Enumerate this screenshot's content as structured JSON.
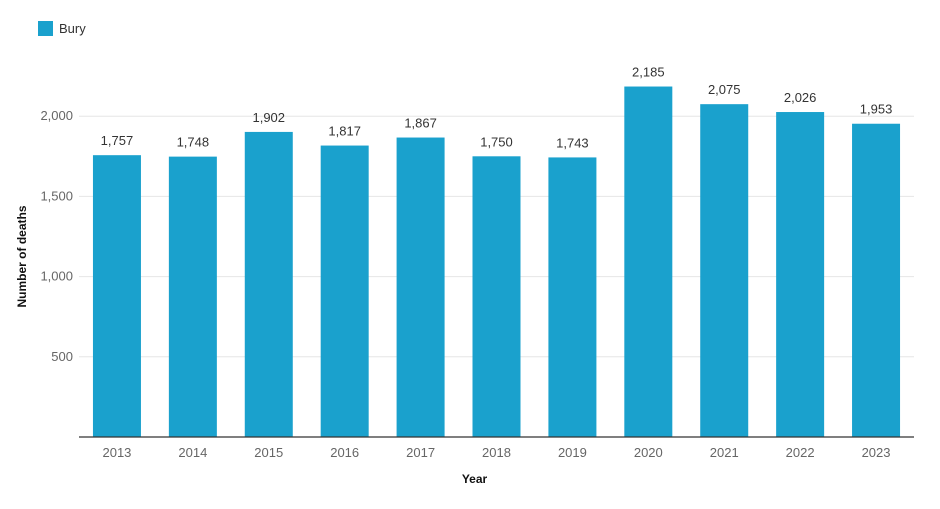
{
  "legend": {
    "label": "Bury"
  },
  "colors": {
    "bar": "#1aa1cd",
    "grid": "#e6e6e6",
    "axis": "#333333"
  },
  "chart_data": {
    "type": "bar",
    "categories": [
      "2013",
      "2014",
      "2015",
      "2016",
      "2017",
      "2018",
      "2019",
      "2020",
      "2021",
      "2022",
      "2023"
    ],
    "series": [
      {
        "name": "Bury",
        "values": [
          1757,
          1748,
          1902,
          1817,
          1867,
          1750,
          1743,
          2185,
          2075,
          2026,
          1953
        ]
      }
    ],
    "value_labels": [
      "1,757",
      "1,748",
      "1,902",
      "1,817",
      "1,867",
      "1,750",
      "1,743",
      "2,185",
      "2,075",
      "2,026",
      "1,953"
    ],
    "xlabel": "Year",
    "ylabel": "Number of deaths",
    "ylim": [
      0,
      2500
    ],
    "yticks": [
      500,
      1000,
      1500,
      2000
    ],
    "ytick_labels": [
      "500",
      "1,000",
      "1,500",
      "2,000"
    ],
    "grid": true,
    "legend_position": "top-left"
  }
}
